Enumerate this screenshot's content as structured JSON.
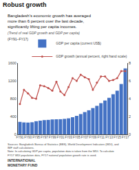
{
  "chart_data": {
    "type": "bar",
    "title": "Robust growth",
    "subtitle": "Bangladesh’s economic growth has averaged\nmore than 6 percent over the last decade,\nsignificantly lifting per capita incomes.",
    "annotations": [
      "(Trend of real GDP growth and GDP per capita)",
      "(FY91–FY17)",
      "Sources: Bangladesh Bureau of Statistics (BBS), World Development Indicators (WDI), and\nIMF staff calculations.\nNote: In calculating GDP per capita, population data is taken from the WDI. To calculate\nFY17 WDI population data, FY17 national population growth rate is used.",
      "INTERNATIONAL\nMONETARY FUND"
    ],
    "categories": [
      "FY91",
      null,
      "FY93",
      null,
      "FY95",
      null,
      "FY97",
      null,
      "FY99",
      null,
      "FY01",
      null,
      "FY03",
      null,
      "FY05",
      null,
      "FY07",
      null,
      "FY09",
      null,
      "FY11",
      null,
      "FY13",
      null,
      "FY15",
      null,
      "FY17"
    ],
    "series": [
      {
        "name": "GDP per capita (current US$)",
        "type": "bar",
        "color": "#4472C4",
        "values": [
          280,
          268,
          265,
          272,
          295,
          308,
          320,
          325,
          335,
          338,
          340,
          348,
          360,
          385,
          415,
          455,
          500,
          540,
          590,
          640,
          700,
          760,
          820,
          900,
          980,
          1130,
          1480
        ]
      },
      {
        "name": "GDP growth (annual percent, right hand scale)",
        "type": "line",
        "axis": "y2",
        "marker": "circle",
        "color": "#C0504D",
        "values": [
          3.4,
          5.0,
          4.6,
          4.1,
          4.0,
          5.5,
          5.4,
          5.2,
          4.9,
          5.9,
          4.8,
          4.4,
          5.3,
          6.3,
          6.0,
          6.7,
          6.4,
          6.2,
          5.0,
          5.8,
          6.5,
          6.5,
          6.0,
          6.1,
          6.3,
          7.1,
          7.1
        ]
      }
    ],
    "ylim": [
      0,
      1600
    ],
    "yticks": [
      0,
      400,
      800,
      1200,
      1600
    ],
    "y2lim": [
      0,
      8
    ],
    "y2ticks": [
      0,
      2,
      4,
      6,
      8
    ],
    "grid": false,
    "legend": "top"
  }
}
